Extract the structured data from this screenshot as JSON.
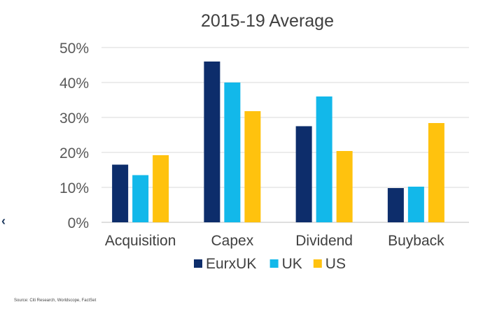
{
  "chart_data": {
    "type": "bar",
    "title": "2015-19 Average",
    "categories": [
      "Acquisition",
      "Capex",
      "Dividend",
      "Buyback"
    ],
    "series": [
      {
        "name": "EurxUK",
        "values": [
          16.5,
          46.0,
          27.5,
          9.8
        ],
        "color": "#0d2d6b"
      },
      {
        "name": "UK",
        "values": [
          13.5,
          40.0,
          36.0,
          10.2
        ],
        "color": "#12b8ea"
      },
      {
        "name": "US",
        "values": [
          19.2,
          31.8,
          20.4,
          28.4
        ],
        "color": "#ffc20e"
      }
    ],
    "ylim": [
      0,
      50
    ],
    "yticks": [
      0,
      10,
      20,
      30,
      40,
      50
    ],
    "ytick_labels": [
      "0%",
      "10%",
      "20%",
      "30%",
      "40%",
      "50%"
    ],
    "grid": true,
    "legend": "bottom"
  },
  "source_note": "Source: Citi Research, Worldscope, FactSet",
  "nav_icon": "chevron-left-icon"
}
